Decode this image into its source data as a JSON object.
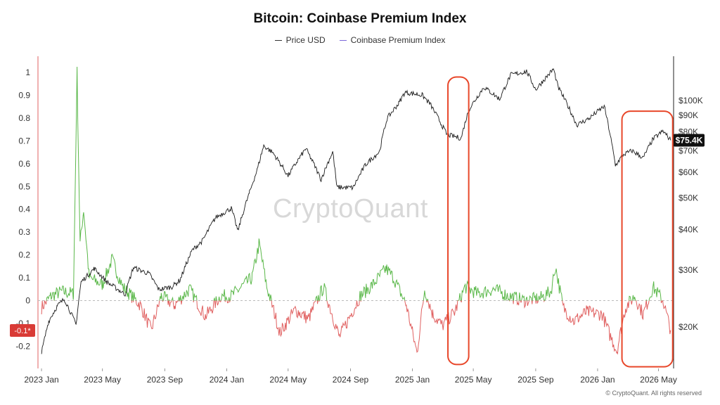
{
  "chart_data": {
    "type": "line",
    "title": "Bitcoin: Coinbase Premium Index",
    "legend": [
      {
        "name": "Price USD",
        "color": "#333333"
      },
      {
        "name": "Coinbase Premium Index",
        "color": "#7b68d9"
      }
    ],
    "legend_placement": "top-center",
    "x_ticks": [
      "2023 Jan",
      "2023 May",
      "2023 Sep",
      "2024 Jan",
      "2024 May",
      "2024 Sep",
      "2025 Jan",
      "2025 May",
      "2025 Sep",
      "2026 Jan",
      "2026 May"
    ],
    "x_range": [
      "2022-12-25",
      "2026-05-28"
    ],
    "y_left": {
      "ticks": [
        "1",
        "0.9",
        "0.8",
        "0.7",
        "0.6",
        "0.5",
        "0.4",
        "0.3",
        "0.2",
        "0.1",
        "0",
        "-0.1",
        "-0.2"
      ],
      "range": [
        -0.3,
        1.05
      ]
    },
    "y_right": {
      "ticks": [
        "$100K",
        "$90K",
        "$80K",
        "$70K",
        "$60K",
        "$50K",
        "$40K",
        "$30K",
        "$20K"
      ],
      "scale": "log",
      "range": [
        15000,
        130000
      ]
    },
    "price_series": {
      "name": "Price USD",
      "points": [
        [
          "2023-01-01",
          16600
        ],
        [
          "2023-01-15",
          20800
        ],
        [
          "2023-02-01",
          23200
        ],
        [
          "2023-02-15",
          24400
        ],
        [
          "2023-03-10",
          20300
        ],
        [
          "2023-03-20",
          27500
        ],
        [
          "2023-04-15",
          30300
        ],
        [
          "2023-05-10",
          27500
        ],
        [
          "2023-06-15",
          25200
        ],
        [
          "2023-07-01",
          30500
        ],
        [
          "2023-08-01",
          29200
        ],
        [
          "2023-08-20",
          26100
        ],
        [
          "2023-09-15",
          26600
        ],
        [
          "2023-10-01",
          27900
        ],
        [
          "2023-10-25",
          34500
        ],
        [
          "2023-11-15",
          37000
        ],
        [
          "2023-12-10",
          43500
        ],
        [
          "2024-01-10",
          46500
        ],
        [
          "2024-01-23",
          39500
        ],
        [
          "2024-02-15",
          52000
        ],
        [
          "2024-03-01",
          61000
        ],
        [
          "2024-03-14",
          72500
        ],
        [
          "2024-04-01",
          69000
        ],
        [
          "2024-05-01",
          58500
        ],
        [
          "2024-06-05",
          71000
        ],
        [
          "2024-07-05",
          57000
        ],
        [
          "2024-07-28",
          69500
        ],
        [
          "2024-08-05",
          54000
        ],
        [
          "2024-09-06",
          53800
        ],
        [
          "2024-10-01",
          63500
        ],
        [
          "2024-10-28",
          69500
        ],
        [
          "2024-11-12",
          88000
        ],
        [
          "2024-12-05",
          98000
        ],
        [
          "2024-12-17",
          106000
        ],
        [
          "2025-01-20",
          104000
        ],
        [
          "2025-02-05",
          97500
        ],
        [
          "2025-02-28",
          84000
        ],
        [
          "2025-03-10",
          78500
        ],
        [
          "2025-04-07",
          76500
        ],
        [
          "2025-04-22",
          93500
        ],
        [
          "2025-05-22",
          110000
        ],
        [
          "2025-06-22",
          101000
        ],
        [
          "2025-07-14",
          120000
        ],
        [
          "2025-08-14",
          123000
        ],
        [
          "2025-09-01",
          108000
        ],
        [
          "2025-10-06",
          125000
        ],
        [
          "2025-10-15",
          110000
        ],
        [
          "2025-11-21",
          84000
        ],
        [
          "2025-12-15",
          88000
        ],
        [
          "2026-01-14",
          96000
        ],
        [
          "2026-02-05",
          63000
        ],
        [
          "2026-02-20",
          68000
        ],
        [
          "2026-03-10",
          70000
        ],
        [
          "2026-04-01",
          66500
        ],
        [
          "2026-04-20",
          76000
        ],
        [
          "2026-05-10",
          80500
        ],
        [
          "2026-05-25",
          75400
        ]
      ]
    },
    "premium_series": {
      "name": "Coinbase Premium Index",
      "positive_color": "#5bb84a",
      "negative_color": "#e06060",
      "points": [
        [
          "2023-01-01",
          -0.03
        ],
        [
          "2023-01-20",
          0.02
        ],
        [
          "2023-02-10",
          0.04
        ],
        [
          "2023-03-05",
          0.03
        ],
        [
          "2023-03-12",
          1.0
        ],
        [
          "2023-03-18",
          0.25
        ],
        [
          "2023-03-25",
          0.4
        ],
        [
          "2023-04-05",
          0.1
        ],
        [
          "2023-05-01",
          0.07
        ],
        [
          "2023-05-20",
          0.18
        ],
        [
          "2023-06-10",
          0.06
        ],
        [
          "2023-07-15",
          -0.02
        ],
        [
          "2023-08-05",
          -0.13
        ],
        [
          "2023-08-25",
          0.02
        ],
        [
          "2023-09-20",
          -0.02
        ],
        [
          "2023-10-20",
          0.05
        ],
        [
          "2023-11-20",
          -0.07
        ],
        [
          "2023-12-20",
          0.02
        ],
        [
          "2024-01-10",
          0.02
        ],
        [
          "2024-02-20",
          0.1
        ],
        [
          "2024-03-05",
          0.25
        ],
        [
          "2024-03-20",
          0.06
        ],
        [
          "2024-04-15",
          -0.14
        ],
        [
          "2024-05-15",
          -0.04
        ],
        [
          "2024-06-10",
          -0.08
        ],
        [
          "2024-07-10",
          0.06
        ],
        [
          "2024-08-10",
          -0.16
        ],
        [
          "2024-09-20",
          0.02
        ],
        [
          "2024-10-15",
          0.07
        ],
        [
          "2024-11-10",
          0.14
        ],
        [
          "2024-11-25",
          0.1
        ],
        [
          "2024-12-20",
          -0.02
        ],
        [
          "2025-01-10",
          -0.23
        ],
        [
          "2025-01-25",
          0.05
        ],
        [
          "2025-02-10",
          -0.06
        ],
        [
          "2025-03-01",
          -0.11
        ],
        [
          "2025-03-25",
          -0.05
        ],
        [
          "2025-04-15",
          0.06
        ],
        [
          "2025-05-10",
          0.03
        ],
        [
          "2025-06-10",
          0.05
        ],
        [
          "2025-07-10",
          0.02
        ],
        [
          "2025-08-10",
          0.0
        ],
        [
          "2025-09-10",
          0.01
        ],
        [
          "2025-10-01",
          0.04
        ],
        [
          "2025-10-10",
          0.15
        ],
        [
          "2025-10-25",
          -0.03
        ],
        [
          "2025-11-15",
          -0.09
        ],
        [
          "2025-12-10",
          -0.05
        ],
        [
          "2026-01-10",
          -0.06
        ],
        [
          "2026-01-25",
          -0.15
        ],
        [
          "2026-02-08",
          -0.22
        ],
        [
          "2026-02-25",
          -0.03
        ],
        [
          "2026-03-15",
          0.02
        ],
        [
          "2026-04-01",
          -0.06
        ],
        [
          "2026-04-20",
          0.06
        ],
        [
          "2026-05-10",
          0.0
        ],
        [
          "2026-05-25",
          -0.13
        ]
      ]
    },
    "current_price_label": "$75.4K",
    "current_premium_label": "-0.1*",
    "zero_line": "dashed",
    "grid": false,
    "annotations": [
      {
        "shape": "rounded-rect",
        "color": "#e8472a",
        "x_from": "2025-03-12",
        "x_to": "2025-04-22",
        "y_from": 0.98,
        "y_to": -0.28
      },
      {
        "shape": "rounded-rect",
        "color": "#e8472a",
        "x_from": "2026-02-18",
        "x_to": "2026-05-29",
        "y_from": 0.83,
        "y_to": -0.29
      }
    ]
  },
  "watermark": "CryptoQuant",
  "copyright": "© CryptoQuant. All rights reserved"
}
